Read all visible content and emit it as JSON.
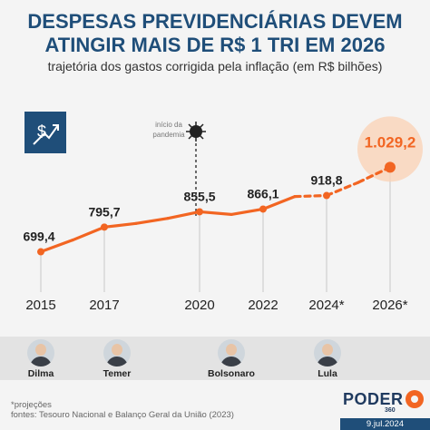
{
  "header": {
    "title_line1": "DESPESAS PREVIDENCIÁRIAS DEVEM",
    "title_line2": "ATINGIR MAIS DE R$ 1 TRI EM 2026",
    "subtitle": "trajetória dos gastos corrigida pela inflação (em R$ bilhões)"
  },
  "badge_icon": "dollar-rising-arrow-icon",
  "annotation": {
    "line1": "início da",
    "line2": "pandemia",
    "icon": "virus-icon"
  },
  "chart_data": {
    "type": "line",
    "title": "DESPESAS PREVIDENCIÁRIAS DEVEM ATINGIR MAIS DE R$ 1 TRI EM 2026",
    "subtitle": "trajetória dos gastos corrigida pela inflação (em R$ bilhões)",
    "x": [
      2015,
      2016,
      2017,
      2018,
      2019,
      2020,
      2021,
      2022,
      2023,
      2024,
      2025,
      2026
    ],
    "values": [
      699.4,
      745,
      795.7,
      810,
      830,
      855.5,
      845,
      866.1,
      915,
      918.8,
      970,
      1029.2
    ],
    "projected_from": 2024,
    "ylim": [
      620,
      1080
    ],
    "xticks": [
      "2015",
      "2017",
      "2020",
      "2022",
      "2024*",
      "2026*"
    ],
    "xtick_values": [
      2015,
      2017,
      2020,
      2022,
      2024,
      2026
    ],
    "data_labels": [
      {
        "x": 2015,
        "text": "699,4"
      },
      {
        "x": 2017,
        "text": "795,7"
      },
      {
        "x": 2020,
        "text": "855,5"
      },
      {
        "x": 2022,
        "text": "866,1"
      },
      {
        "x": 2024,
        "text": "918,8"
      },
      {
        "x": 2026,
        "text": "1.029,2"
      }
    ],
    "grid": false,
    "colors": {
      "line": "#f26522",
      "highlight_label": "#f26522",
      "highlight_glow": "#fbd2b4"
    }
  },
  "presidents": [
    {
      "name": "Dilma"
    },
    {
      "name": "Temer"
    },
    {
      "name": "Bolsonaro"
    },
    {
      "name": "Lula"
    }
  ],
  "footer": {
    "note": "*projeções",
    "sources": "fontes: Tesouro Nacional e Balanço Geral da União (2023)",
    "logo": "PODER",
    "logo_sub": "360",
    "date": "9.jul.2024"
  }
}
